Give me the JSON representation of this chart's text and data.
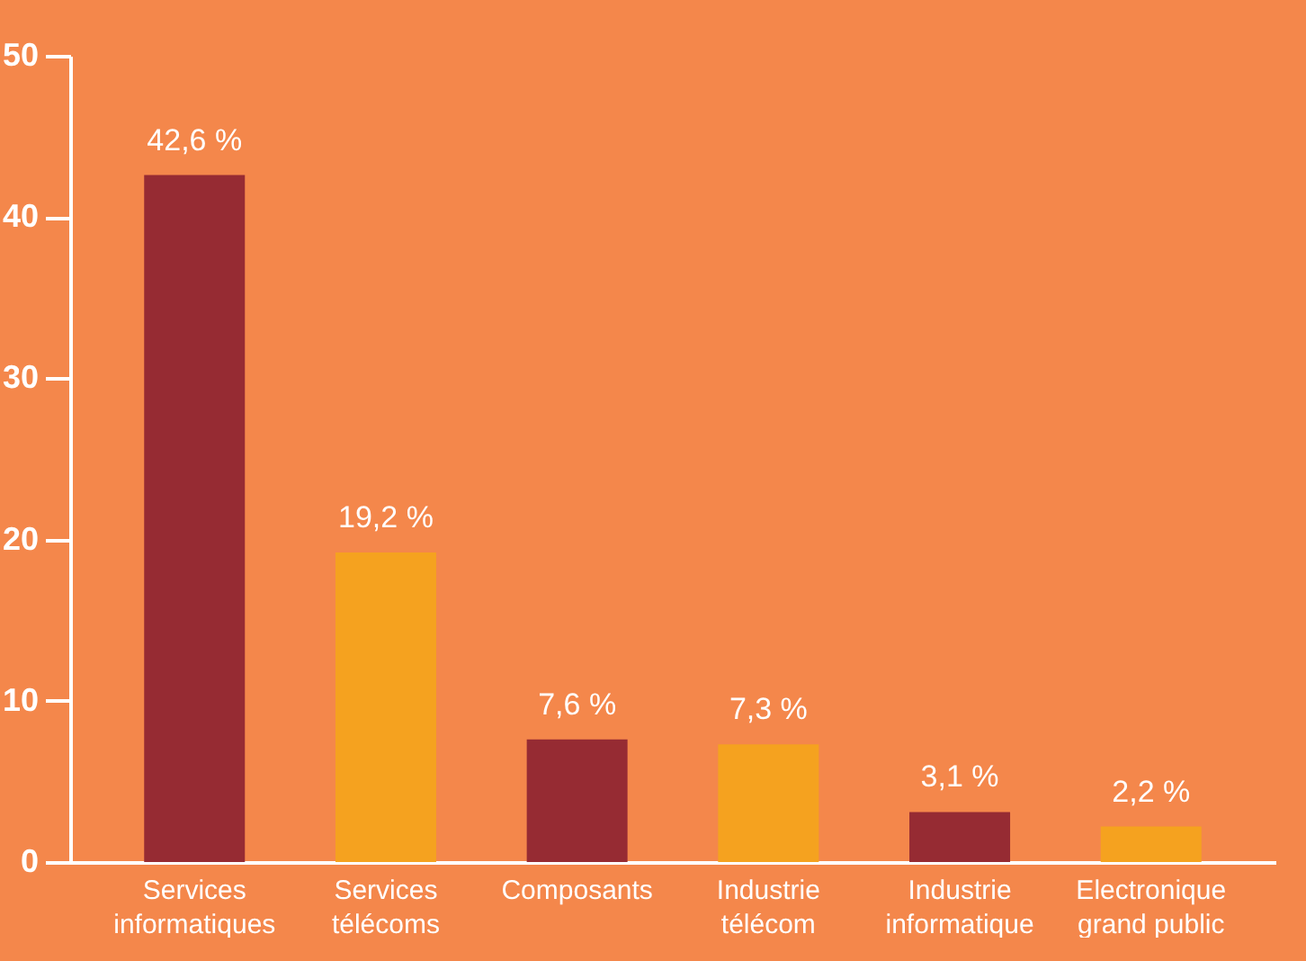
{
  "chart_data": {
    "type": "bar",
    "categories": [
      "Services\ninformatiques",
      "Services\ntélécoms",
      "Composants",
      "Industrie\ntélécom",
      "Industrie\ninformatique",
      "Electronique\ngrand public"
    ],
    "values": [
      42.6,
      19.2,
      7.6,
      7.3,
      3.1,
      2.2
    ],
    "colors": [
      "#962b33",
      "#f5a21f",
      "#962b33",
      "#f5a21f",
      "#962b33",
      "#f5a21f"
    ],
    "value_labels": [
      "42,6 %",
      "19,2 %",
      "7,6 %",
      "7,3 %",
      "3,1 %",
      "2,2 %"
    ],
    "ylim": [
      0,
      50
    ],
    "yticks": [
      0,
      10,
      20,
      30,
      40,
      50
    ]
  }
}
